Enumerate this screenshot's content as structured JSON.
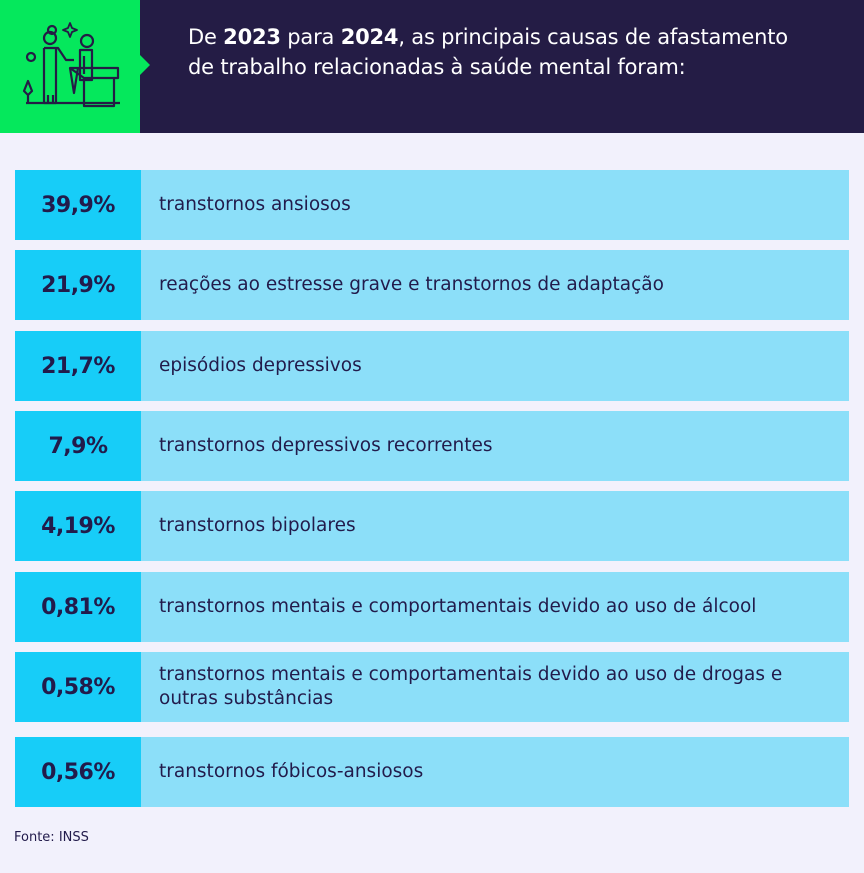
{
  "header": {
    "title_parts": [
      "De ",
      "2023",
      " para ",
      "2024",
      ", as principais causas de afastamento de trabalho relacionadas à saúde mental foram:"
    ],
    "icon": "caregiver-with-patient-icon"
  },
  "colors": {
    "header_bg": "#241c45",
    "icon_bg": "#05e85c",
    "percent_bg": "#17cdf8",
    "label_bg": "#8cdff9",
    "page_bg": "#f2f1fc",
    "text": "#221b4b"
  },
  "chart_data": {
    "type": "table",
    "categories": [
      "transtornos ansiosos",
      "reações ao estresse grave e transtornos de adaptação",
      "episódios depressivos",
      "transtornos depressivos recorrentes",
      "transtornos bipolares",
      "transtornos mentais e comportamentais devido ao uso de álcool",
      "transtornos mentais e comportamentais devido ao uso de drogas e outras substâncias",
      "transtornos fóbicos-ansiosos"
    ],
    "values": [
      39.9,
      21.9,
      21.7,
      7.9,
      4.19,
      0.81,
      0.58,
      0.56
    ],
    "value_labels": [
      "39,9%",
      "21,9%",
      "21,7%",
      "7,9%",
      "4,19%",
      "0,81%",
      "0,58%",
      "0,56%"
    ]
  },
  "source": "Fonte: INSS"
}
